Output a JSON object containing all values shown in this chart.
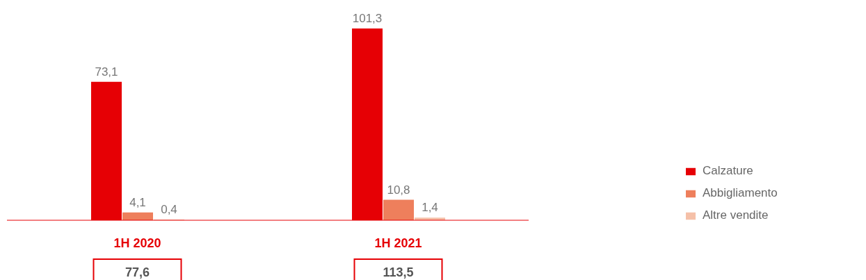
{
  "chart_data": {
    "type": "bar",
    "categories": [
      "1H 2020",
      "1H 2021"
    ],
    "series": [
      {
        "name": "Calzature",
        "color": "#e60005",
        "values": [
          73.1,
          101.3
        ],
        "value_labels": [
          "73,1",
          "101,3"
        ]
      },
      {
        "name": "Abbigliamento",
        "color": "#ee7f5c",
        "values": [
          4.1,
          10.8
        ],
        "value_labels": [
          "4,1",
          "10,8"
        ]
      },
      {
        "name": "Altre vendite",
        "color": "#f5c0a8",
        "values": [
          0.4,
          1.4
        ],
        "value_labels": [
          "0,4",
          "1,4"
        ]
      }
    ],
    "annotations": [
      "77,6",
      "113,5"
    ],
    "legend": "right",
    "grid": false
  }
}
